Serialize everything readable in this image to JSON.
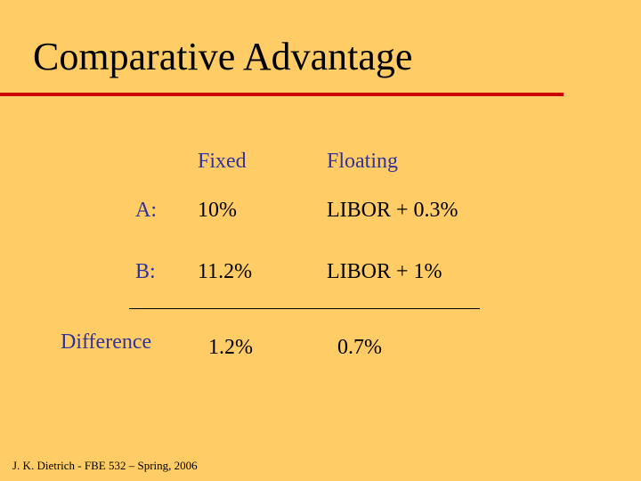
{
  "title": "Comparative Advantage",
  "table": {
    "headers": {
      "fixed": "Fixed",
      "floating": "Floating"
    },
    "rows": [
      {
        "label": "A:",
        "fixed": "10%",
        "floating": "LIBOR + 0.3%"
      },
      {
        "label": "B:",
        "fixed": "11.2%",
        "floating": "LIBOR + 1%"
      }
    ],
    "difference": {
      "label": "Difference",
      "fixed": "1.2%",
      "floating": "0.7%"
    }
  },
  "footer": "J. K. Dietrich - FBE 532 – Spring, 2006",
  "colors": {
    "background": "#FFCC66",
    "title_rule": "#CC0000",
    "label_text": "#333399",
    "value_text": "#000000"
  }
}
